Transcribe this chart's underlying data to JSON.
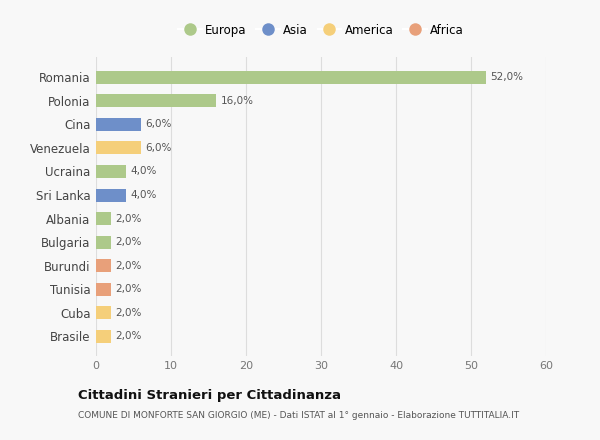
{
  "countries": [
    "Romania",
    "Polonia",
    "Cina",
    "Venezuela",
    "Ucraina",
    "Sri Lanka",
    "Albania",
    "Bulgaria",
    "Burundi",
    "Tunisia",
    "Cuba",
    "Brasile"
  ],
  "values": [
    52.0,
    16.0,
    6.0,
    6.0,
    4.0,
    4.0,
    2.0,
    2.0,
    2.0,
    2.0,
    2.0,
    2.0
  ],
  "continents": [
    "Europa",
    "Europa",
    "Asia",
    "America",
    "Europa",
    "Asia",
    "Europa",
    "Europa",
    "Africa",
    "Africa",
    "America",
    "America"
  ],
  "colors": {
    "Europa": "#adc98a",
    "Asia": "#6e8fc9",
    "America": "#f5cf7a",
    "Africa": "#e8a07a"
  },
  "legend_order": [
    "Europa",
    "Asia",
    "America",
    "Africa"
  ],
  "xlim": [
    0,
    60
  ],
  "xticks": [
    0,
    10,
    20,
    30,
    40,
    50,
    60
  ],
  "title": "Cittadini Stranieri per Cittadinanza",
  "subtitle": "COMUNE DI MONFORTE SAN GIORGIO (ME) - Dati ISTAT al 1° gennaio - Elaborazione TUTTITALIA.IT",
  "bg_color": "#f8f8f8",
  "plot_bg_color": "#f8f8f8",
  "grid_color": "#dddddd",
  "bar_height": 0.55
}
